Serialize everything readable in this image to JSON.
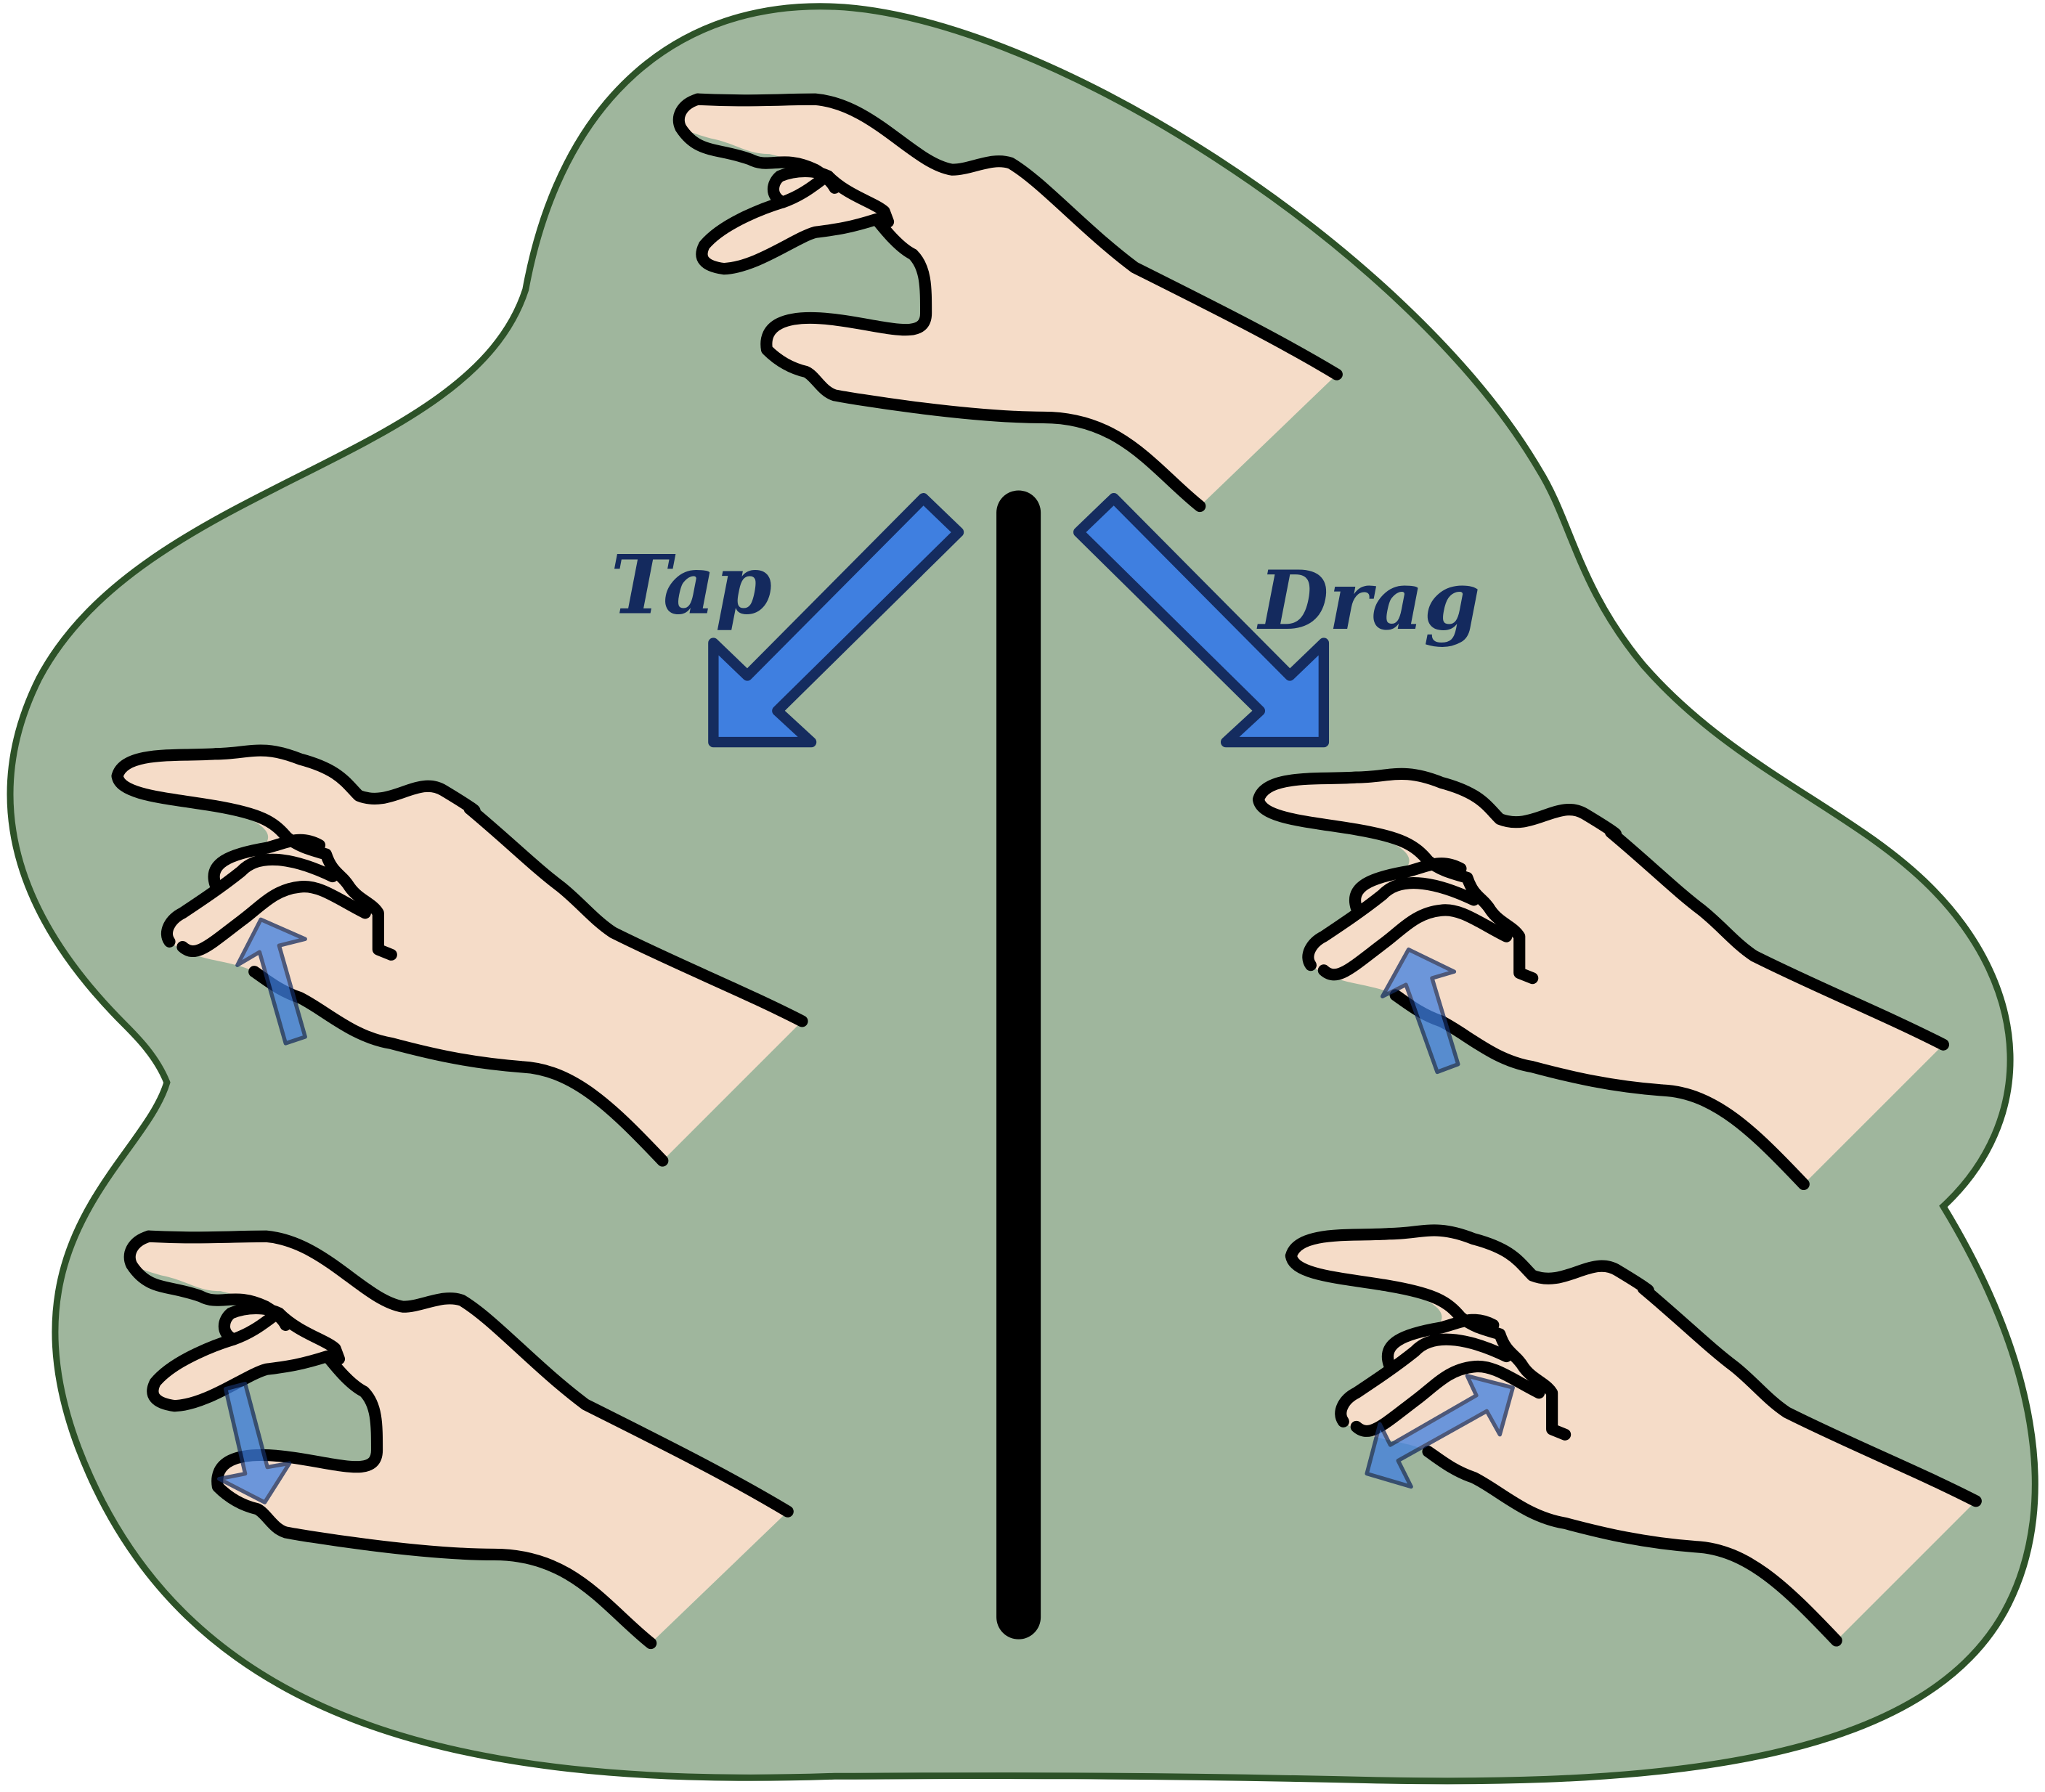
{
  "labels": {
    "left": "Tap",
    "right": "Drag"
  },
  "colors": {
    "background_blob": "#9fb69d",
    "blob_outline": "#2d5228",
    "skin": "#f5dcc8",
    "outline": "#000000",
    "arrow_fill": "#3f7fe0",
    "arrow_stroke": "#152c5f",
    "label_text": "#142a5e"
  },
  "icons": [
    "start-hand-icon",
    "tap-arrow-icon",
    "divider-line",
    "drag-arrow-icon",
    "tap-hand-top-icon",
    "tap-hand-bottom-icon",
    "drag-hand-top-icon",
    "drag-hand-bottom-icon",
    "thumb-up-arrow-icon",
    "thumb-down-arrow-icon",
    "thumb-slide-arrow-icon"
  ]
}
